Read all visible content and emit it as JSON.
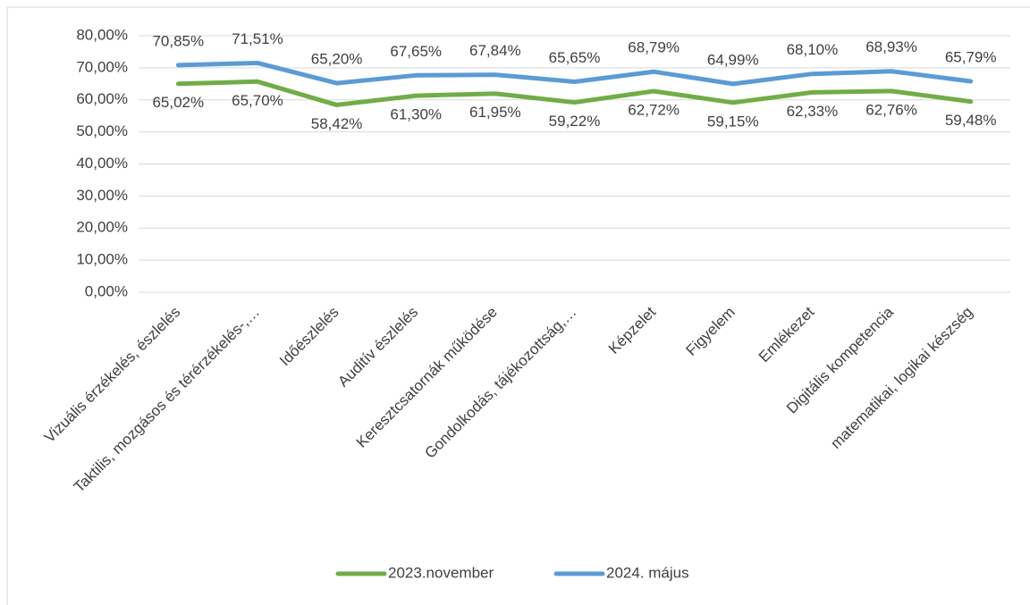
{
  "chart_data": {
    "type": "line",
    "categories": [
      "Vizuális érzékelés, észlelés",
      "Taktilis, mozgásos és térérzékelés-,…",
      "Időészlelés",
      "Auditív észlelés",
      "Keresztcsatornák működése",
      "Gondolkodás, tájékozottság,…",
      "Képzelet",
      "Figyelem",
      "Emlékezet",
      "Digitális kompetencia",
      "matematikai, logikai készség"
    ],
    "series": [
      {
        "name": "2023.november",
        "color": "#70ad47",
        "values": [
          65.02,
          65.7,
          58.42,
          61.3,
          61.95,
          59.22,
          62.72,
          59.15,
          62.33,
          62.76,
          59.48
        ],
        "value_labels": [
          "65,02%",
          "65,70%",
          "58,42%",
          "61,30%",
          "61,95%",
          "59,22%",
          "62,72%",
          "59,15%",
          "62,33%",
          "62,76%",
          "59,48%"
        ]
      },
      {
        "name": "2024. május",
        "color": "#5b9bd5",
        "values": [
          70.85,
          71.51,
          65.2,
          67.65,
          67.84,
          65.65,
          68.79,
          64.99,
          68.1,
          68.93,
          65.79
        ],
        "value_labels": [
          "70,85%",
          "71,51%",
          "65,20%",
          "67,65%",
          "67,84%",
          "65,65%",
          "68,79%",
          "64,99%",
          "68,10%",
          "68,93%",
          "65,79%"
        ]
      }
    ],
    "ylim": [
      0,
      80
    ],
    "yticks": [
      {
        "value": 0,
        "label": "0,00%"
      },
      {
        "value": 10,
        "label": "10,00%"
      },
      {
        "value": 20,
        "label": "20,00%"
      },
      {
        "value": 30,
        "label": "30,00%"
      },
      {
        "value": 40,
        "label": "40,00%"
      },
      {
        "value": 50,
        "label": "50,00%"
      },
      {
        "value": 60,
        "label": "60,00%"
      },
      {
        "value": 70,
        "label": "70,00%"
      },
      {
        "value": 80,
        "label": "80,00%"
      }
    ],
    "grid": true,
    "legend": "bottom"
  }
}
